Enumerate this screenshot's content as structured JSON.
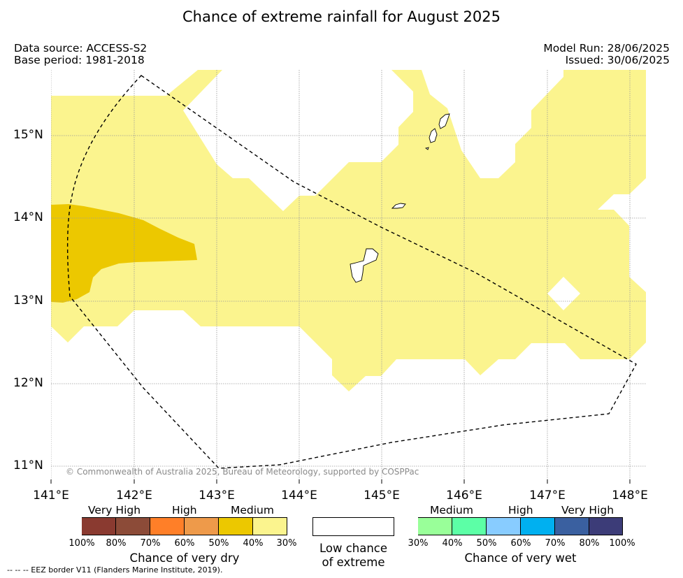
{
  "header": {
    "title": "Chance of extreme rainfall for August 2025",
    "data_source": "Data source: ACCESS-S2",
    "base_period": "Base period: 1981-2018",
    "model_run": "Model Run: 28/06/2025",
    "issued": "Issued: 30/06/2025"
  },
  "map": {
    "lat_ticks": [
      "15°N",
      "14°N",
      "13°N",
      "12°N",
      "11°N"
    ],
    "lon_ticks": [
      "141°E",
      "142°E",
      "143°E",
      "144°E",
      "145°E",
      "146°E",
      "147°E",
      "148°E"
    ],
    "copyright": "© Commonwealth of Australia 2025, Bureau of Meteorology, supported by COSPPac",
    "colors": {
      "light_yellow": "#fbf48e",
      "gold": "#ecc800",
      "eez_line": "#000000",
      "grid": "#9a9a9a"
    }
  },
  "legend": {
    "dry": {
      "categories": [
        "Very High",
        "High",
        "Medium"
      ],
      "colors": [
        "#8a3a30",
        "#8c4b38",
        "#ff7f28",
        "#ee9a4a",
        "#ecc800",
        "#fbf48e"
      ],
      "percent_labels": [
        "100%",
        "80%",
        "70%",
        "60%",
        "50%",
        "40%",
        "30%"
      ],
      "title": "Chance of very dry"
    },
    "low": {
      "line1": "Low chance",
      "line2": "of extreme"
    },
    "wet": {
      "categories": [
        "Medium",
        "High",
        "Very High"
      ],
      "colors": [
        "#99ff99",
        "#5cffa6",
        "#88ccff",
        "#00b0f0",
        "#3a60a0",
        "#3c3c78"
      ],
      "percent_labels": [
        "30%",
        "40%",
        "50%",
        "60%",
        "70%",
        "80%",
        "100%"
      ],
      "title": "Chance of very wet"
    }
  },
  "footer": {
    "eez_note": "--  --  -- EEZ border V11 (Flanders Marine Institute, 2019)."
  }
}
